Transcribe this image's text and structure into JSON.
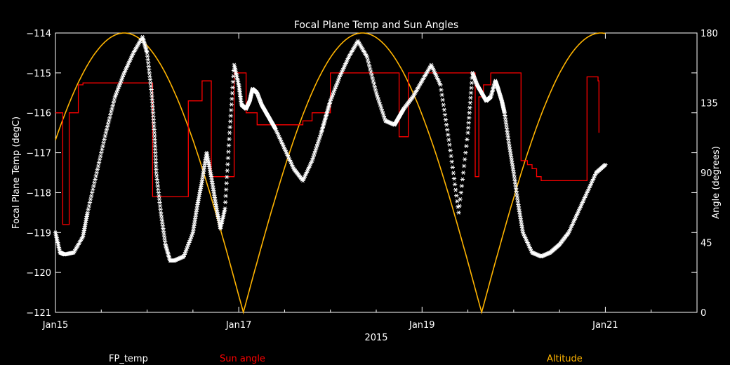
{
  "chart_data": {
    "type": "line",
    "title": "Focal Plane Temp and Sun Angles",
    "xlabel": "2015",
    "ylabel": "Focal Plane Temp (degC)",
    "y2label": "Angle (degrees)",
    "x_ticks": [
      "Jan15",
      "Jan17",
      "Jan19",
      "Jan21"
    ],
    "x_tick_days": [
      15,
      17,
      19,
      21
    ],
    "xlim": [
      15,
      22
    ],
    "ylim": [
      -121,
      -114
    ],
    "y_ticks": [
      -114,
      -115,
      -116,
      -117,
      -118,
      -119,
      -120,
      -121
    ],
    "y_tick_labels": [
      "−114",
      "−115",
      "−116",
      "−117",
      "−118",
      "−119",
      "−120",
      "−121"
    ],
    "y2lim": [
      0,
      180
    ],
    "y2_ticks": [
      0,
      45,
      90,
      135,
      180
    ],
    "legend_position": "bottom",
    "colors": {
      "fp_temp": "#ffffff",
      "sun_angle": "#ff0000",
      "altitude": "#ffb400",
      "axes": "#ffffff",
      "background": "#000000"
    },
    "series": [
      {
        "name": "FP_temp",
        "axis": "left",
        "style": "asterisk",
        "x": [
          15.0,
          15.05,
          15.1,
          15.2,
          15.3,
          15.35,
          15.45,
          15.55,
          15.65,
          15.75,
          15.85,
          15.95,
          16.0,
          16.05,
          16.08,
          16.1,
          16.15,
          16.2,
          16.25,
          16.3,
          16.4,
          16.5,
          16.55,
          16.6,
          16.65,
          16.7,
          16.75,
          16.8,
          16.85,
          16.9,
          16.95,
          17.0,
          17.03,
          17.08,
          17.12,
          17.15,
          17.2,
          17.25,
          17.3,
          17.35,
          17.4,
          17.5,
          17.6,
          17.7,
          17.8,
          17.9,
          17.95,
          18.0,
          18.1,
          18.2,
          18.3,
          18.4,
          18.5,
          18.6,
          18.7,
          18.75,
          18.8,
          18.9,
          19.0,
          19.1,
          19.2,
          19.3,
          19.4,
          19.5,
          19.55,
          19.6,
          19.65,
          19.7,
          19.75,
          19.8,
          19.83,
          19.87,
          19.9,
          19.95,
          20.0,
          20.05,
          20.1,
          20.2,
          20.3,
          20.4,
          20.5,
          20.6,
          20.7,
          20.8,
          20.9,
          21.0
        ],
        "y": [
          -119.0,
          -119.5,
          -119.55,
          -119.5,
          -119.1,
          -118.5,
          -117.5,
          -116.5,
          -115.6,
          -115.0,
          -114.5,
          -114.1,
          -114.5,
          -115.5,
          -116.5,
          -117.5,
          -118.5,
          -119.3,
          -119.7,
          -119.7,
          -119.6,
          -119.0,
          -118.3,
          -117.7,
          -117.0,
          -117.6,
          -118.3,
          -118.9,
          -118.4,
          -116.5,
          -114.8,
          -115.3,
          -115.8,
          -115.9,
          -115.7,
          -115.4,
          -115.5,
          -115.8,
          -116.0,
          -116.2,
          -116.4,
          -116.9,
          -117.4,
          -117.7,
          -117.2,
          -116.5,
          -116.1,
          -115.7,
          -115.1,
          -114.6,
          -114.2,
          -114.6,
          -115.5,
          -116.2,
          -116.3,
          -116.1,
          -115.9,
          -115.6,
          -115.2,
          -114.8,
          -115.3,
          -116.8,
          -118.5,
          -116.5,
          -115.0,
          -115.3,
          -115.5,
          -115.7,
          -115.6,
          -115.2,
          -115.4,
          -115.7,
          -116.0,
          -116.8,
          -117.5,
          -118.3,
          -119.0,
          -119.5,
          -119.6,
          -119.5,
          -119.3,
          -119.0,
          -118.5,
          -118.0,
          -117.5,
          -117.3
        ]
      },
      {
        "name": "Sun angle",
        "axis": "left",
        "style": "step",
        "x": [
          15.0,
          15.08,
          15.15,
          15.2,
          15.25,
          15.3,
          15.35,
          15.4,
          15.6,
          15.8,
          16.0,
          16.06,
          16.4,
          16.45,
          16.6,
          16.67,
          16.7,
          16.88,
          16.95,
          17.0,
          17.03,
          17.08,
          17.13,
          17.2,
          17.25,
          17.3,
          17.4,
          17.55,
          17.7,
          17.8,
          18.0,
          18.2,
          18.4,
          18.65,
          18.75,
          18.8,
          18.85,
          19.0,
          19.2,
          19.4,
          19.5,
          19.55,
          19.58,
          19.62,
          19.67,
          19.75,
          20.0,
          20.08,
          20.1,
          20.15,
          20.2,
          20.25,
          20.3,
          20.4,
          20.6,
          20.8,
          20.92,
          20.93
        ],
        "y": [
          -116.0,
          -118.8,
          -116.0,
          -116.0,
          -115.3,
          -115.25,
          -115.25,
          -115.25,
          -115.25,
          -115.25,
          -115.25,
          -118.1,
          -118.1,
          -115.7,
          -115.2,
          -115.2,
          -117.6,
          -117.6,
          -115.0,
          -115.0,
          -115.0,
          -116.0,
          -116.0,
          -116.3,
          -116.3,
          -116.3,
          -116.3,
          -116.3,
          -116.2,
          -116.0,
          -115.0,
          -115.0,
          -115.0,
          -115.0,
          -116.6,
          -116.6,
          -115.0,
          -115.0,
          -115.0,
          -115.0,
          -115.0,
          -115.0,
          -117.6,
          -115.6,
          -115.3,
          -115.0,
          -115.0,
          -117.2,
          -117.2,
          -117.3,
          -117.4,
          -117.6,
          -117.7,
          -117.7,
          -117.7,
          -115.1,
          -115.2,
          -116.5
        ]
      },
      {
        "name": "Altitude",
        "axis": "right",
        "style": "line",
        "period_days": 2.6,
        "min_days": [
          17.05,
          19.65
        ],
        "ylim": [
          0,
          180
        ]
      }
    ]
  }
}
